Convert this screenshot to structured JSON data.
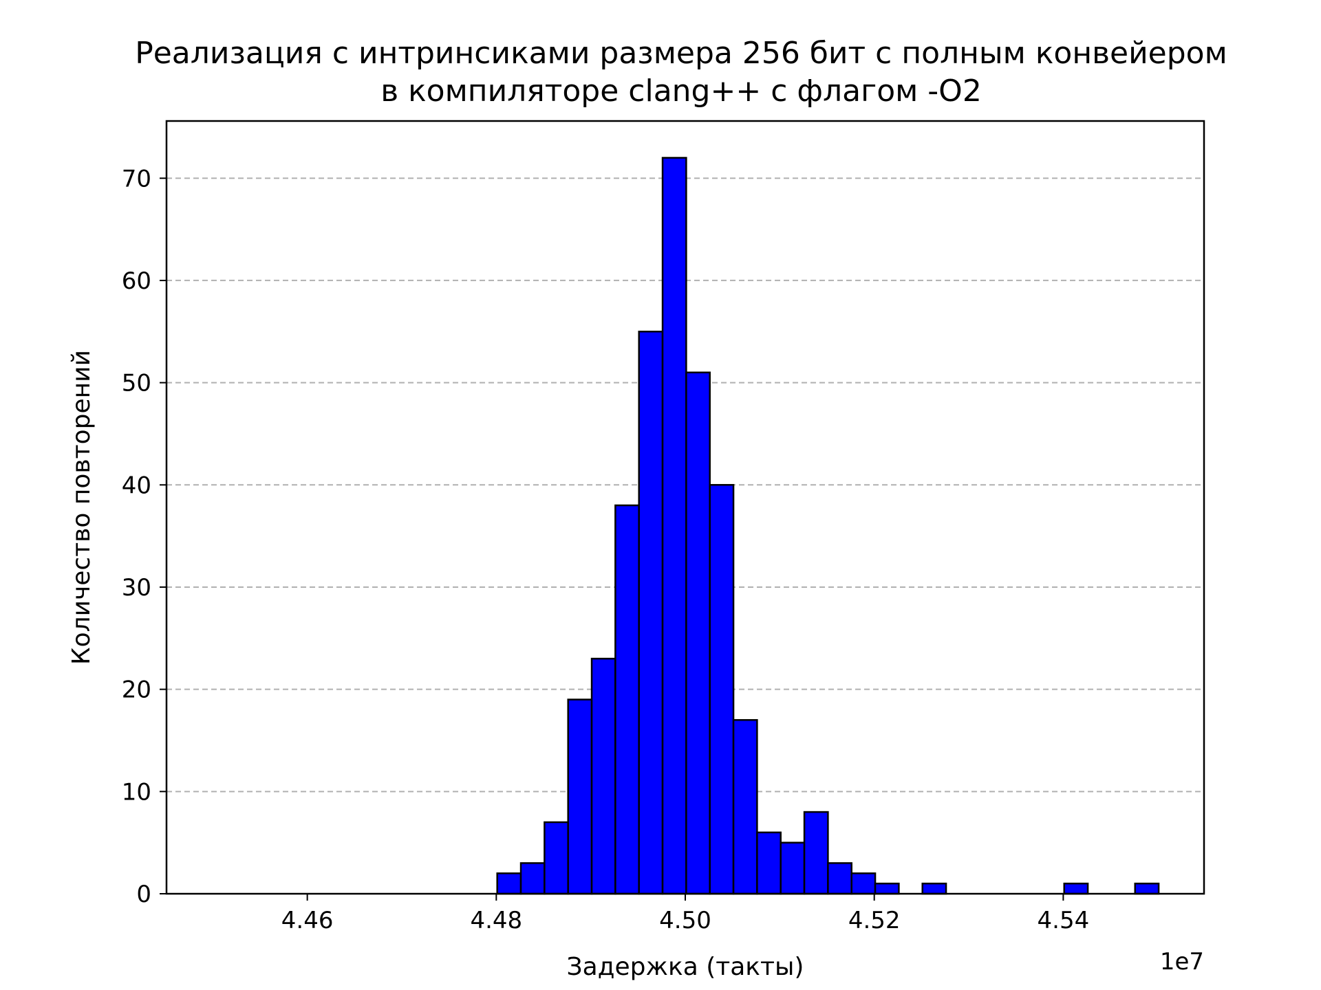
{
  "chart_data": {
    "type": "bar",
    "title_lines": [
      "Реализация с интринсиками размера 256 бит с полным конвейером",
      "в компиляторе clang++ с флагом -O2"
    ],
    "xlabel": "Задержка (такты)",
    "ylabel": "Количество повторений",
    "x_offset_label": "1e7",
    "x_scale": 10000000,
    "xlim": [
      4.4451,
      4.5549
    ],
    "ylim": [
      0,
      75.6
    ],
    "x_ticks": [
      {
        "value": 4.46,
        "label": "4.46"
      },
      {
        "value": 4.48,
        "label": "4.48"
      },
      {
        "value": 4.5,
        "label": "4.50"
      },
      {
        "value": 4.52,
        "label": "4.52"
      },
      {
        "value": 4.54,
        "label": "4.54"
      }
    ],
    "y_ticks": [
      {
        "value": 0,
        "label": "0"
      },
      {
        "value": 10,
        "label": "10"
      },
      {
        "value": 20,
        "label": "20"
      },
      {
        "value": 30,
        "label": "30"
      },
      {
        "value": 40,
        "label": "40"
      },
      {
        "value": 50,
        "label": "50"
      },
      {
        "value": 60,
        "label": "60"
      },
      {
        "value": 70,
        "label": "70"
      }
    ],
    "grid": {
      "axis": "y",
      "style": "dashed",
      "color": "#b0b0b0"
    },
    "bar_color": "#0000ff",
    "edge_color": "#000000",
    "bin_start": 4.4501,
    "bin_width": 0.0025,
    "counts": [
      0,
      0,
      0,
      0,
      0,
      0,
      0,
      0,
      0,
      0,
      0,
      0,
      2,
      3,
      7,
      19,
      23,
      38,
      55,
      72,
      51,
      40,
      17,
      6,
      5,
      8,
      3,
      2,
      1,
      0,
      1,
      0,
      0,
      0,
      0,
      0,
      1,
      0,
      0,
      1
    ]
  }
}
